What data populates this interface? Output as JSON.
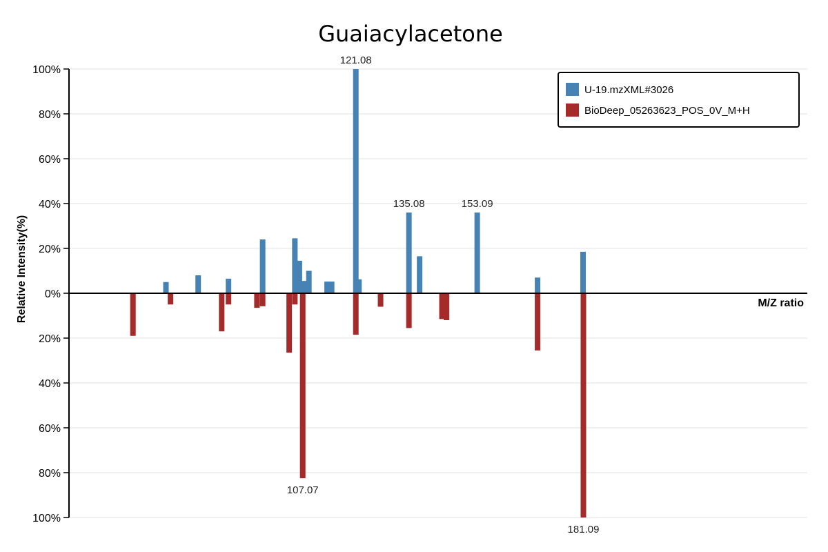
{
  "chart_data": {
    "type": "bar",
    "title": "Guaiacylacetone",
    "xlabel": "M/Z ratio",
    "ylabel": "Relative Intensity(%)",
    "ylim": [
      -100,
      100
    ],
    "y_ticks": [
      {
        "value": 100,
        "label": "100%"
      },
      {
        "value": 80,
        "label": "80%"
      },
      {
        "value": 60,
        "label": "60%"
      },
      {
        "value": 40,
        "label": "40%"
      },
      {
        "value": 20,
        "label": "20%"
      },
      {
        "value": 0,
        "label": "0%"
      },
      {
        "value": -20,
        "label": "20%"
      },
      {
        "value": -40,
        "label": "40%"
      },
      {
        "value": -60,
        "label": "60%"
      },
      {
        "value": -80,
        "label": "80%"
      },
      {
        "value": -100,
        "label": "100%"
      }
    ],
    "grid": true,
    "legend_position": "top-right",
    "xlim": [
      50,
      200
    ],
    "series": [
      {
        "name": "U-19.mzXML#3026",
        "color": "#4682b4",
        "direction": "up",
        "peaks": [
          {
            "mz": 71.0,
            "intensity": 5
          },
          {
            "mz": 79.5,
            "intensity": 8
          },
          {
            "mz": 87.5,
            "intensity": 6.5
          },
          {
            "mz": 96.5,
            "intensity": 24
          },
          {
            "mz": 105.0,
            "intensity": 24.5
          },
          {
            "mz": 106.2,
            "intensity": 14.5
          },
          {
            "mz": 107.5,
            "intensity": 5.5
          },
          {
            "mz": 108.7,
            "intensity": 10
          },
          {
            "mz": 113.5,
            "intensity": 5.2
          },
          {
            "mz": 114.7,
            "intensity": 5.2
          },
          {
            "mz": 121.08,
            "intensity": 100,
            "label": "121.08"
          },
          {
            "mz": 121.9,
            "intensity": 6.2
          },
          {
            "mz": 135.08,
            "intensity": 36,
            "label": "135.08"
          },
          {
            "mz": 137.9,
            "intensity": 16.5
          },
          {
            "mz": 153.09,
            "intensity": 36,
            "label": "153.09"
          },
          {
            "mz": 169.0,
            "intensity": 7
          },
          {
            "mz": 181.0,
            "intensity": 18.5
          }
        ]
      },
      {
        "name": "BioDeep_05263623_POS_0V_M+H",
        "color": "#a52a2a",
        "direction": "down",
        "peaks": [
          {
            "mz": 62.3,
            "intensity": 19
          },
          {
            "mz": 72.2,
            "intensity": 5
          },
          {
            "mz": 85.7,
            "intensity": 17
          },
          {
            "mz": 87.5,
            "intensity": 5
          },
          {
            "mz": 95.0,
            "intensity": 6.5
          },
          {
            "mz": 96.5,
            "intensity": 5.8
          },
          {
            "mz": 103.5,
            "intensity": 26.5
          },
          {
            "mz": 105.0,
            "intensity": 5
          },
          {
            "mz": 107.07,
            "intensity": 82.5,
            "label": "107.07"
          },
          {
            "mz": 121.08,
            "intensity": 18.5
          },
          {
            "mz": 127.6,
            "intensity": 6
          },
          {
            "mz": 135.08,
            "intensity": 15.5
          },
          {
            "mz": 143.8,
            "intensity": 11.5
          },
          {
            "mz": 145.0,
            "intensity": 12
          },
          {
            "mz": 169.0,
            "intensity": 25.5
          },
          {
            "mz": 181.09,
            "intensity": 100,
            "label": "181.09"
          }
        ]
      }
    ]
  }
}
